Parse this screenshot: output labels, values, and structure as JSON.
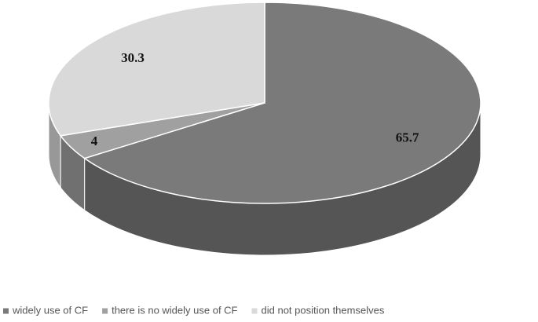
{
  "chart_data": {
    "type": "pie",
    "categories": [
      "widely use of CF",
      "there is no widely use of CF",
      "did not position themselves"
    ],
    "values": [
      65.7,
      4,
      30.3
    ],
    "colors": [
      "#7a7a7a",
      "#a0a0a0",
      "#d9d9d9"
    ],
    "legend": "bottom"
  }
}
